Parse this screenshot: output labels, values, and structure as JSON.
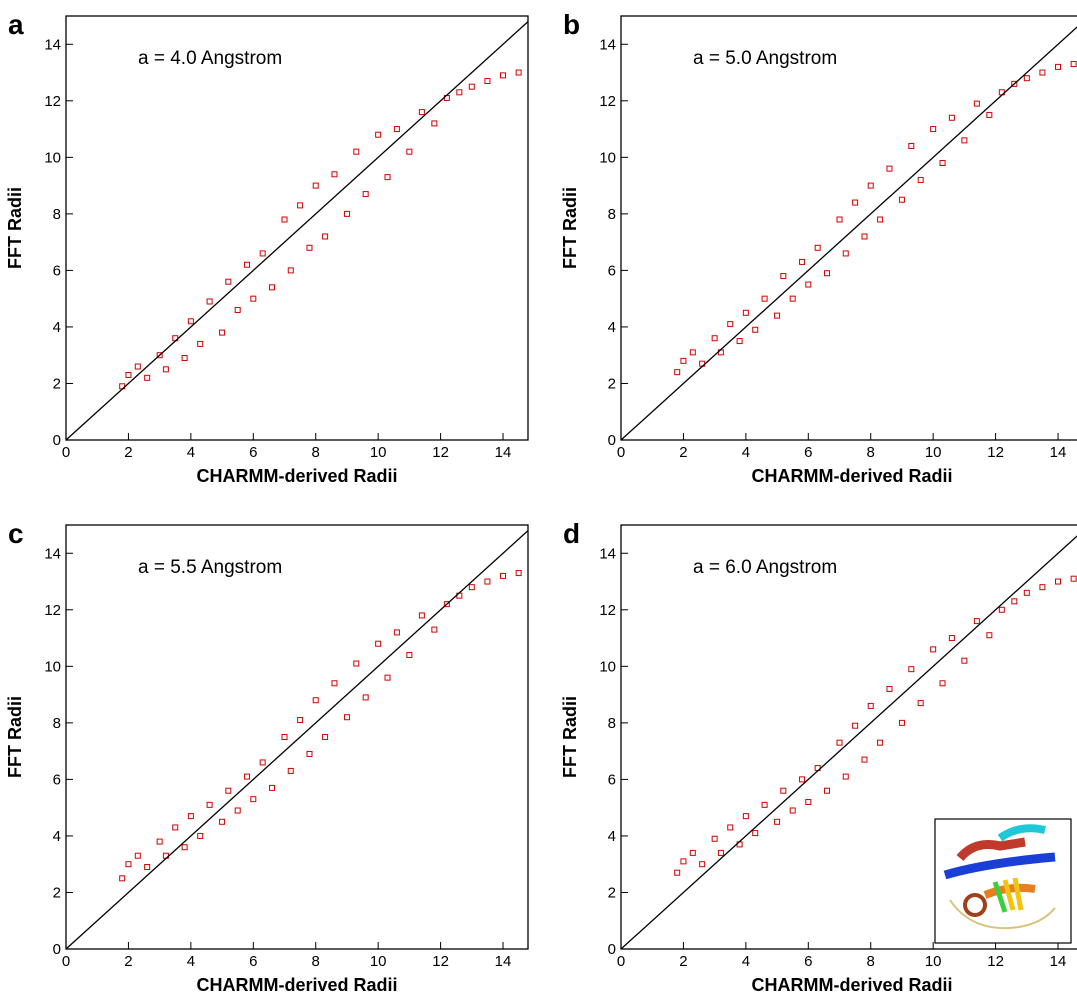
{
  "chart_data": [
    {
      "type": "scatter",
      "label": "a",
      "annotation": "a = 4.0 Angstrom",
      "x_label": "CHARMM-derived Radii",
      "y_label": "FFT Radii",
      "color": "#d40000",
      "xlim": [
        0,
        14.8
      ],
      "ylim": [
        0,
        15
      ],
      "xticks": [
        0,
        2,
        4,
        6,
        8,
        10,
        12,
        14
      ],
      "yticks": [
        0,
        2,
        4,
        6,
        8,
        10,
        12,
        14
      ],
      "x": [
        1.8,
        2.0,
        2.3,
        2.6,
        3.0,
        3.2,
        3.5,
        3.8,
        4.0,
        4.3,
        4.6,
        5.0,
        5.2,
        5.5,
        5.8,
        6.0,
        6.3,
        6.6,
        7.0,
        7.2,
        7.5,
        7.8,
        8.0,
        8.3,
        8.6,
        9.0,
        9.3,
        9.6,
        10.0,
        10.3,
        10.6,
        11.0,
        11.4,
        11.8,
        12.2,
        12.6,
        13.0,
        13.5,
        14.0,
        14.5
      ],
      "values": [
        1.9,
        2.3,
        2.6,
        2.2,
        3.0,
        2.5,
        3.6,
        2.9,
        4.2,
        3.4,
        4.9,
        3.8,
        5.6,
        4.6,
        6.2,
        5.0,
        6.6,
        5.4,
        7.8,
        6.0,
        8.3,
        6.8,
        9.0,
        7.2,
        9.4,
        8.0,
        10.2,
        8.7,
        10.8,
        9.3,
        11.0,
        10.2,
        11.6,
        11.2,
        12.1,
        12.3,
        12.5,
        12.7,
        12.9,
        13.0
      ]
    },
    {
      "type": "scatter",
      "label": "b",
      "annotation": "a = 5.0 Angstrom",
      "x_label": "CHARMM-derived Radii",
      "y_label": "FFT Radii",
      "color": "#d40000",
      "xlim": [
        0,
        14.8
      ],
      "ylim": [
        0,
        15
      ],
      "xticks": [
        0,
        2,
        4,
        6,
        8,
        10,
        12,
        14
      ],
      "yticks": [
        0,
        2,
        4,
        6,
        8,
        10,
        12,
        14
      ],
      "x": [
        1.8,
        2.0,
        2.3,
        2.6,
        3.0,
        3.2,
        3.5,
        3.8,
        4.0,
        4.3,
        4.6,
        5.0,
        5.2,
        5.5,
        5.8,
        6.0,
        6.3,
        6.6,
        7.0,
        7.2,
        7.5,
        7.8,
        8.0,
        8.3,
        8.6,
        9.0,
        9.3,
        9.6,
        10.0,
        10.3,
        10.6,
        11.0,
        11.4,
        11.8,
        12.2,
        12.6,
        13.0,
        13.5,
        14.0,
        14.5
      ],
      "values": [
        2.4,
        2.8,
        3.1,
        2.7,
        3.6,
        3.1,
        4.1,
        3.5,
        4.5,
        3.9,
        5.0,
        4.4,
        5.8,
        5.0,
        6.3,
        5.5,
        6.8,
        5.9,
        7.8,
        6.6,
        8.4,
        7.2,
        9.0,
        7.8,
        9.6,
        8.5,
        10.4,
        9.2,
        11.0,
        9.8,
        11.4,
        10.6,
        11.9,
        11.5,
        12.3,
        12.6,
        12.8,
        13.0,
        13.2,
        13.3
      ]
    },
    {
      "type": "scatter",
      "label": "c",
      "annotation": "a = 5.5 Angstrom",
      "x_label": "CHARMM-derived Radii",
      "y_label": "FFT Radii",
      "color": "#d40000",
      "xlim": [
        0,
        14.8
      ],
      "ylim": [
        0,
        15
      ],
      "xticks": [
        0,
        2,
        4,
        6,
        8,
        10,
        12,
        14
      ],
      "yticks": [
        0,
        2,
        4,
        6,
        8,
        10,
        12,
        14
      ],
      "x": [
        1.8,
        2.0,
        2.3,
        2.6,
        3.0,
        3.2,
        3.5,
        3.8,
        4.0,
        4.3,
        4.6,
        5.0,
        5.2,
        5.5,
        5.8,
        6.0,
        6.3,
        6.6,
        7.0,
        7.2,
        7.5,
        7.8,
        8.0,
        8.3,
        8.6,
        9.0,
        9.3,
        9.6,
        10.0,
        10.3,
        10.6,
        11.0,
        11.4,
        11.8,
        12.2,
        12.6,
        13.0,
        13.5,
        14.0,
        14.5
      ],
      "values": [
        2.5,
        3.0,
        3.3,
        2.9,
        3.8,
        3.3,
        4.3,
        3.6,
        4.7,
        4.0,
        5.1,
        4.5,
        5.6,
        4.9,
        6.1,
        5.3,
        6.6,
        5.7,
        7.5,
        6.3,
        8.1,
        6.9,
        8.8,
        7.5,
        9.4,
        8.2,
        10.1,
        8.9,
        10.8,
        9.6,
        11.2,
        10.4,
        11.8,
        11.3,
        12.2,
        12.5,
        12.8,
        13.0,
        13.2,
        13.3
      ]
    },
    {
      "type": "scatter",
      "label": "d",
      "annotation": "a = 6.0 Angstrom",
      "x_label": "CHARMM-derived Radii",
      "y_label": "FFT Radii",
      "color": "#d40000",
      "xlim": [
        0,
        14.8
      ],
      "ylim": [
        0,
        15
      ],
      "xticks": [
        0,
        2,
        4,
        6,
        8,
        10,
        12,
        14
      ],
      "yticks": [
        0,
        2,
        4,
        6,
        8,
        10,
        12,
        14
      ],
      "x": [
        1.8,
        2.0,
        2.3,
        2.6,
        3.0,
        3.2,
        3.5,
        3.8,
        4.0,
        4.3,
        4.6,
        5.0,
        5.2,
        5.5,
        5.8,
        6.0,
        6.3,
        6.6,
        7.0,
        7.2,
        7.5,
        7.8,
        8.0,
        8.3,
        8.6,
        9.0,
        9.3,
        9.6,
        10.0,
        10.3,
        10.6,
        11.0,
        11.4,
        11.8,
        12.2,
        12.6,
        13.0,
        13.5,
        14.0,
        14.5
      ],
      "values": [
        2.7,
        3.1,
        3.4,
        3.0,
        3.9,
        3.4,
        4.3,
        3.7,
        4.7,
        4.1,
        5.1,
        4.5,
        5.6,
        4.9,
        6.0,
        5.2,
        6.4,
        5.6,
        7.3,
        6.1,
        7.9,
        6.7,
        8.6,
        7.3,
        9.2,
        8.0,
        9.9,
        8.7,
        10.6,
        9.4,
        11.0,
        10.2,
        11.6,
        11.1,
        12.0,
        12.3,
        12.6,
        12.8,
        13.0,
        13.1
      ]
    }
  ]
}
